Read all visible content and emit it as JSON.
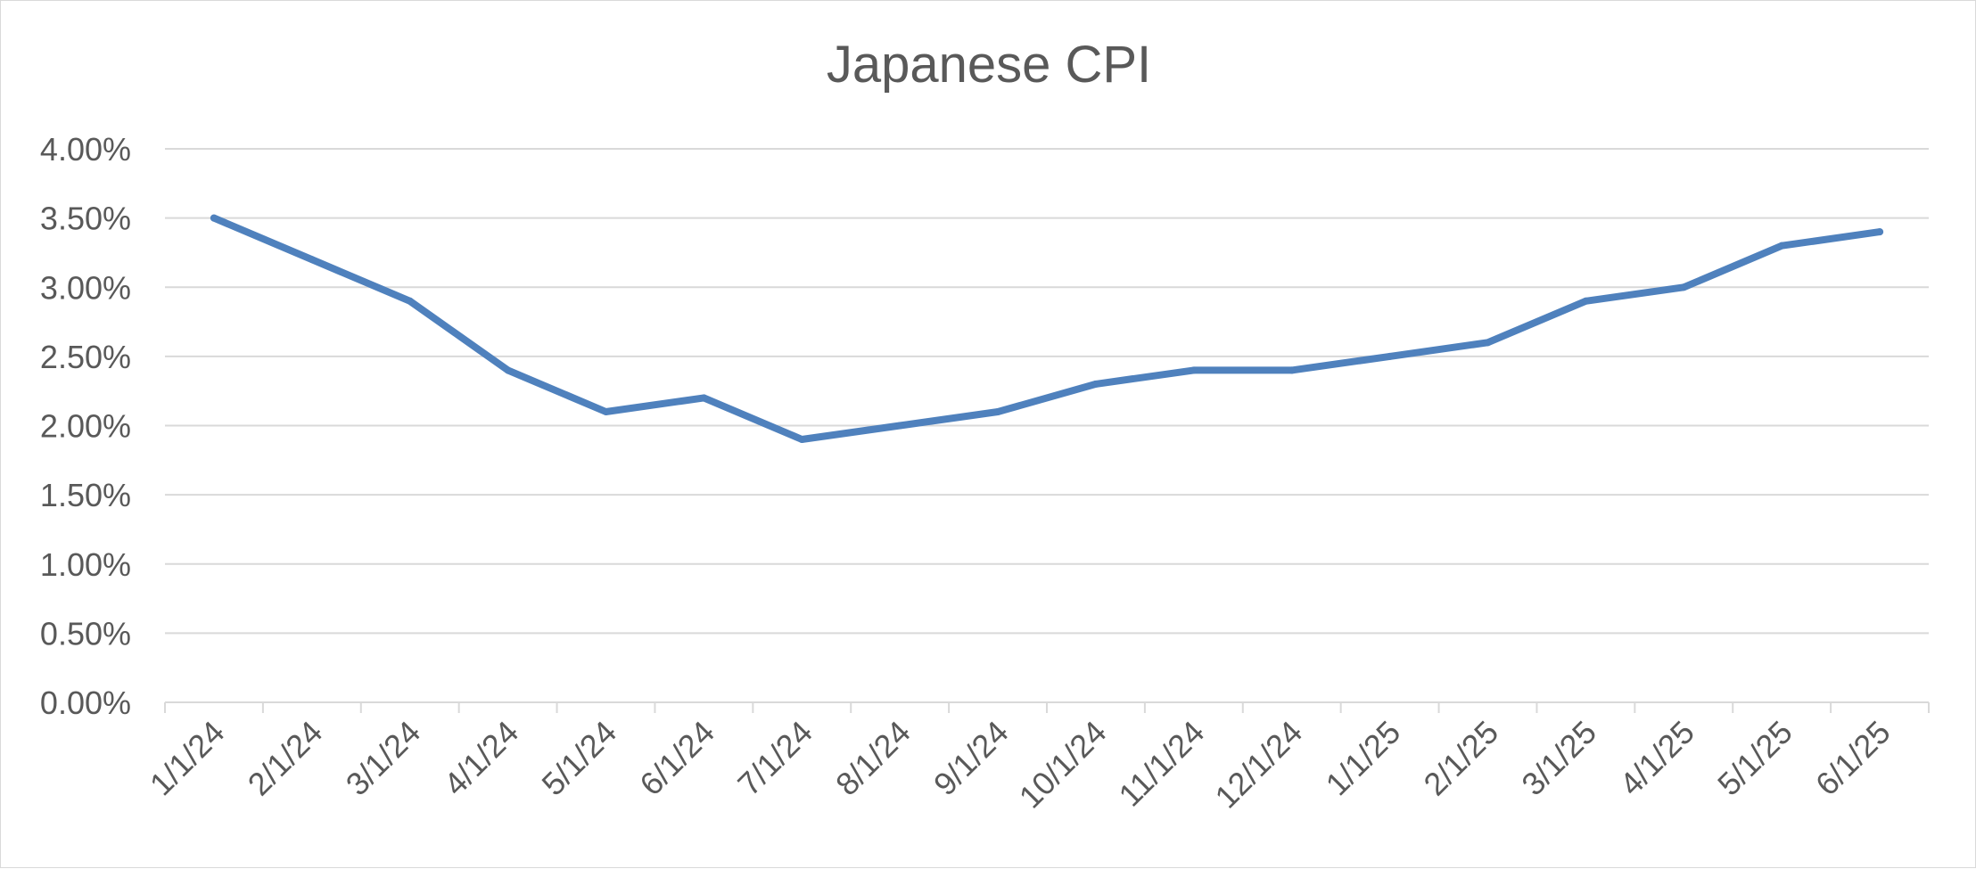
{
  "chart_data": {
    "type": "line",
    "title": "Japanese CPI",
    "xlabel": "",
    "ylabel": "",
    "categories": [
      "1/1/24",
      "2/1/24",
      "3/1/24",
      "4/1/24",
      "5/1/24",
      "6/1/24",
      "7/1/24",
      "8/1/24",
      "9/1/24",
      "10/1/24",
      "11/1/24",
      "12/1/24",
      "1/1/25",
      "2/1/25",
      "3/1/25",
      "4/1/25",
      "5/1/25",
      "6/1/25"
    ],
    "series": [
      {
        "name": "Japanese CPI",
        "color": "#4f81bd",
        "values": [
          3.5,
          3.2,
          2.9,
          2.4,
          2.1,
          2.2,
          1.9,
          2.0,
          2.1,
          2.3,
          2.4,
          2.4,
          2.5,
          2.6,
          2.9,
          3.0,
          3.3,
          3.4
        ]
      }
    ],
    "ylim": [
      0,
      4
    ],
    "y_ticks": [
      0,
      0.5,
      1,
      1.5,
      2,
      2.5,
      3,
      3.5,
      4
    ],
    "y_tick_labels": [
      "0.00%",
      "0.50%",
      "1.00%",
      "1.50%",
      "2.00%",
      "2.50%",
      "3.00%",
      "3.50%",
      "4.00%"
    ],
    "grid": true,
    "legend": "none"
  }
}
